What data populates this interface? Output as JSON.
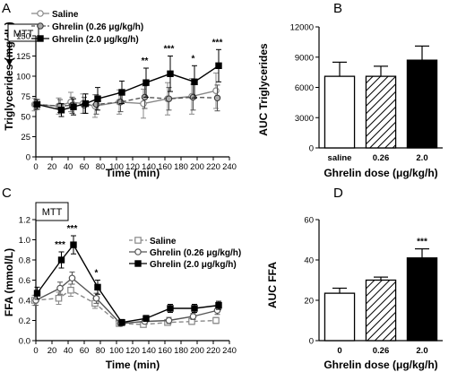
{
  "chart_data": [
    {
      "panel": "A",
      "type": "line",
      "ylabel": "Triglycerides (mg/dL)",
      "xlabel": "Time (min)",
      "xlim": [
        0,
        240
      ],
      "ylim": [
        0,
        150
      ],
      "xticks": [
        0,
        20,
        40,
        60,
        80,
        100,
        120,
        140,
        160,
        180,
        200,
        220,
        240
      ],
      "yticks": [
        0,
        25,
        50,
        75,
        100,
        125,
        150
      ],
      "annotation": "MTT",
      "legend_position": "top-left",
      "series": [
        {
          "name": "Saline",
          "marker": "circle-open",
          "line": "solid",
          "color": "#888888",
          "x": [
            0,
            30,
            45,
            60,
            75,
            105,
            135,
            165,
            195,
            225
          ],
          "y": [
            65,
            63,
            68,
            66,
            63,
            68,
            66,
            72,
            75,
            82
          ],
          "err": [
            8,
            10,
            12,
            12,
            14,
            15,
            18,
            20,
            22,
            22
          ]
        },
        {
          "name": "Ghrelin (0.26 μg/kg/h)",
          "marker": "circle-gray",
          "line": "dashed",
          "color": "#555555",
          "x": [
            0,
            30,
            45,
            60,
            75,
            105,
            135,
            165,
            195,
            225
          ],
          "y": [
            65,
            63,
            64,
            64,
            65,
            68,
            74,
            72,
            74,
            73
          ],
          "err": [
            6,
            8,
            10,
            10,
            12,
            12,
            14,
            14,
            16,
            16
          ]
        },
        {
          "name": "Ghrelin (2.0 μg/kg/h)",
          "marker": "square",
          "line": "solid",
          "color": "#000000",
          "x": [
            0,
            30,
            45,
            60,
            75,
            105,
            135,
            165,
            195,
            225
          ],
          "y": [
            65,
            58,
            62,
            66,
            72,
            80,
            92,
            103,
            93,
            113
          ],
          "err": [
            6,
            8,
            10,
            12,
            14,
            14,
            18,
            22,
            20,
            20
          ]
        }
      ],
      "significance": [
        {
          "x": 135,
          "label": "**"
        },
        {
          "x": 165,
          "label": "***"
        },
        {
          "x": 195,
          "label": "*"
        },
        {
          "x": 225,
          "label": "***"
        }
      ]
    },
    {
      "panel": "B",
      "type": "bar",
      "ylabel": "AUC Triglycerides",
      "xlabel": "Ghrelin dose (μg/kg/h)",
      "ylim": [
        0,
        12000
      ],
      "yticks": [
        0,
        3000,
        6000,
        9000,
        12000
      ],
      "categories": [
        "saline",
        "0.26",
        "2.0"
      ],
      "values": [
        7100,
        7100,
        8700
      ],
      "err": [
        1400,
        1000,
        1400
      ],
      "fills": [
        "white",
        "hatched",
        "black"
      ]
    },
    {
      "panel": "C",
      "type": "line",
      "ylabel": "FFA (mmol/L)",
      "xlabel": "Time (min)",
      "xlim": [
        0,
        240
      ],
      "ylim": [
        0.0,
        1.2
      ],
      "xticks": [
        0,
        20,
        40,
        60,
        80,
        100,
        120,
        140,
        160,
        180,
        200,
        220,
        240
      ],
      "yticks": [
        0.0,
        0.2,
        0.4,
        0.6,
        0.8,
        1.0,
        1.2
      ],
      "annotation": "MTT",
      "legend_position": "right",
      "series": [
        {
          "name": "Saline",
          "marker": "square-open",
          "line": "dashed",
          "color": "#888888",
          "x": [
            0,
            30,
            45,
            75,
            105,
            135,
            165,
            195,
            225
          ],
          "y": [
            0.4,
            0.42,
            0.5,
            0.37,
            0.17,
            0.16,
            0.18,
            0.19,
            0.2
          ],
          "err": [
            0.05,
            0.06,
            0.06,
            0.05,
            0.02,
            0.02,
            0.02,
            0.03,
            0.03
          ]
        },
        {
          "name": "Ghrelin (0.26 μg/kg/h)",
          "marker": "circle-open",
          "line": "solid",
          "color": "#555555",
          "x": [
            0,
            30,
            45,
            75,
            105,
            135,
            165,
            195,
            225
          ],
          "y": [
            0.4,
            0.52,
            0.62,
            0.42,
            0.17,
            0.19,
            0.2,
            0.24,
            0.3
          ],
          "err": [
            0.05,
            0.06,
            0.06,
            0.05,
            0.02,
            0.02,
            0.03,
            0.03,
            0.04
          ]
        },
        {
          "name": "Ghrelin (2.0 μg/kg/h)",
          "marker": "square",
          "line": "solid",
          "color": "#000000",
          "x": [
            0,
            30,
            45,
            75,
            105,
            135,
            165,
            195,
            225
          ],
          "y": [
            0.47,
            0.8,
            0.95,
            0.53,
            0.18,
            0.22,
            0.32,
            0.32,
            0.35
          ],
          "err": [
            0.06,
            0.08,
            0.09,
            0.07,
            0.03,
            0.03,
            0.04,
            0.04,
            0.04
          ]
        }
      ],
      "significance": [
        {
          "x": 30,
          "label": "***"
        },
        {
          "x": 45,
          "label": "***"
        },
        {
          "x": 75,
          "label": "*"
        }
      ]
    },
    {
      "panel": "D",
      "type": "bar",
      "ylabel": "AUC FFA",
      "xlabel": "Ghrelin dose (μg/kg/h)",
      "ylim": [
        0,
        60
      ],
      "yticks": [
        0,
        20,
        40,
        60
      ],
      "categories": [
        "0",
        "0.26",
        "2.0"
      ],
      "values": [
        23.5,
        30.0,
        41.0
      ],
      "err": [
        2.5,
        1.5,
        4.5
      ],
      "fills": [
        "white",
        "hatched",
        "black"
      ],
      "significance": [
        {
          "index": 2,
          "label": "***"
        }
      ]
    }
  ]
}
